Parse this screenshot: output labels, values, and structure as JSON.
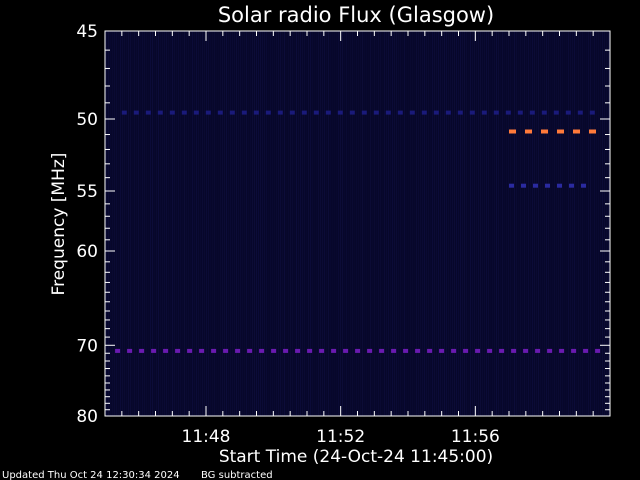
{
  "chart_data": {
    "type": "heatmap",
    "title": "Solar radio Flux (Glasgow)",
    "xlabel": "Start Time (24-Oct-24 11:45:00)",
    "ylabel": "Frequency [MHz]",
    "x_range_minutes": [
      0,
      15
    ],
    "x_ticks": [
      {
        "minute": 3,
        "label": "11:48"
      },
      {
        "minute": 7,
        "label": "11:52"
      },
      {
        "minute": 11,
        "label": "11:56"
      }
    ],
    "y_range_mhz": [
      45,
      80
    ],
    "y_scale": "reciprocal",
    "y_ticks": [
      {
        "mhz": 45,
        "label": "45"
      },
      {
        "mhz": 50,
        "label": "50"
      },
      {
        "mhz": 55,
        "label": "55"
      },
      {
        "mhz": 60,
        "label": "60"
      },
      {
        "mhz": 70,
        "label": "70"
      },
      {
        "mhz": 80,
        "label": "80"
      }
    ],
    "background_color": "#07072a",
    "features": [
      {
        "name": "interference 49.6 MHz",
        "mhz": 49.6,
        "minute_start": 0.5,
        "minute_end": 14.6,
        "color": "#1a1a7a"
      },
      {
        "name": "emission 50.8 MHz",
        "mhz": 50.8,
        "minute_start": 12.0,
        "minute_end": 14.4,
        "color": "#ff7a3a"
      },
      {
        "name": "interference 54.6 MHz",
        "mhz": 54.6,
        "minute_start": 12.0,
        "minute_end": 14.4,
        "color": "#2a2aa0"
      },
      {
        "name": "interference 70.7 MHz",
        "mhz": 70.7,
        "minute_start": 0.3,
        "minute_end": 14.7,
        "color": "#6a1ab0"
      }
    ]
  },
  "footer": {
    "updated": "Updated Thu Oct 24 12:30:34 2024",
    "note": "BG subtracted"
  }
}
